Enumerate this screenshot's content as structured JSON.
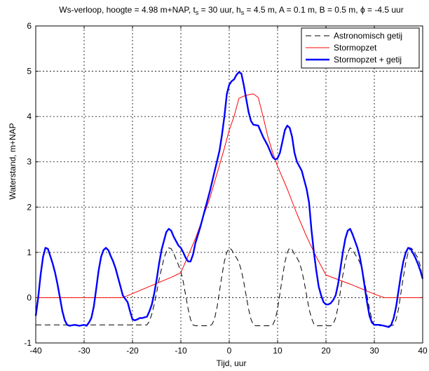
{
  "chart_data": {
    "type": "line",
    "title_parts": {
      "p1": "Ws-verloop, hoogte = 4.98 m+NAP, t",
      "s1": "s",
      "p2": " = 30 uur, h",
      "s2": "s",
      "p3": " = 4.5 m, A = 0.1 m, B = 0.5 m, ϕ = -4.5 uur"
    },
    "xlabel": "Tijd, uur",
    "ylabel": "Waterstand, m+NAP",
    "xlim": [
      -40,
      40
    ],
    "ylim": [
      -1,
      6
    ],
    "xticks": [
      "-40",
      "-30",
      "-20",
      "-10",
      "0",
      "10",
      "20",
      "30",
      "40"
    ],
    "yticks": [
      "-1",
      "0",
      "1",
      "2",
      "3",
      "4",
      "5",
      "6"
    ],
    "grid": true,
    "legend_position": "top-right",
    "series": [
      {
        "name": "Astronomisch getij",
        "color": "#000000",
        "style": "dashed",
        "points": [
          [
            -40,
            -0.6
          ],
          [
            -39.5,
            -0.6
          ],
          [
            -39,
            -0.6
          ],
          [
            -38.5,
            -0.6
          ],
          [
            -38,
            -0.6
          ],
          [
            -37.5,
            -0.6
          ],
          [
            -37,
            -0.6
          ],
          [
            -36.5,
            -0.6
          ],
          [
            -36,
            -0.6
          ],
          [
            -35.5,
            -0.6
          ],
          [
            -35,
            -0.6
          ],
          [
            -34.5,
            -0.6
          ],
          [
            -34,
            -0.6
          ],
          [
            -33.5,
            -0.6
          ],
          [
            -33,
            -0.6
          ],
          [
            -32.5,
            -0.6
          ],
          [
            -32,
            -0.6
          ],
          [
            -31.5,
            -0.6
          ],
          [
            -31,
            -0.6
          ],
          [
            -30.5,
            -0.6
          ],
          [
            -30,
            -0.6
          ],
          [
            -29.5,
            -0.6
          ],
          [
            -29,
            -0.6
          ],
          [
            -28.5,
            -0.6
          ],
          [
            -28,
            -0.6
          ],
          [
            -27.5,
            -0.6
          ],
          [
            -27,
            -0.6
          ],
          [
            -26.5,
            -0.6
          ],
          [
            -26,
            -0.6
          ],
          [
            -25.5,
            -0.6
          ],
          [
            -25,
            -0.6
          ],
          [
            -24.5,
            -0.6
          ],
          [
            -24,
            -0.6
          ],
          [
            -23.5,
            -0.6
          ],
          [
            -23,
            -0.6
          ],
          [
            -22.5,
            -0.6
          ],
          [
            -22,
            -0.6
          ],
          [
            -21.5,
            -0.6
          ],
          [
            -21,
            -0.6
          ],
          [
            -20.5,
            -0.6
          ],
          [
            -20,
            -0.6
          ],
          [
            -19.5,
            -0.6
          ],
          [
            -19,
            -0.6
          ],
          [
            -18.5,
            -0.6
          ],
          [
            -18,
            -0.6
          ],
          [
            -17.5,
            -0.6
          ],
          [
            -17,
            -0.6
          ],
          [
            -16.5,
            -0.52
          ],
          [
            -16,
            -0.36
          ],
          [
            -15.5,
            -0.14
          ],
          [
            -15,
            0.12
          ],
          [
            -14.5,
            0.4
          ],
          [
            -14,
            0.64
          ],
          [
            -13.5,
            0.86
          ],
          [
            -13,
            1.02
          ],
          [
            -12.5,
            1.1
          ],
          [
            -12,
            1.08
          ],
          [
            -11.5,
            0.98
          ],
          [
            -11,
            0.85
          ],
          [
            -10.5,
            0.72
          ],
          [
            -10,
            0.58
          ],
          [
            -9.5,
            0.35
          ],
          [
            -9,
            0.05
          ],
          [
            -8.5,
            -0.25
          ],
          [
            -8,
            -0.48
          ],
          [
            -7.5,
            -0.6
          ],
          [
            -7,
            -0.62
          ],
          [
            -6,
            -0.62
          ],
          [
            -5,
            -0.62
          ],
          [
            -4,
            -0.62
          ],
          [
            -3.5,
            -0.58
          ],
          [
            -3,
            -0.45
          ],
          [
            -2.5,
            -0.2
          ],
          [
            -2,
            0.15
          ],
          [
            -1.5,
            0.5
          ],
          [
            -1,
            0.8
          ],
          [
            -0.5,
            1.0
          ],
          [
            0,
            1.1
          ],
          [
            0.5,
            1.06
          ],
          [
            1,
            0.96
          ],
          [
            1.5,
            0.88
          ],
          [
            2,
            0.78
          ],
          [
            2.5,
            0.6
          ],
          [
            3,
            0.35
          ],
          [
            3.5,
            0.05
          ],
          [
            4,
            -0.25
          ],
          [
            4.5,
            -0.48
          ],
          [
            5,
            -0.6
          ],
          [
            5.5,
            -0.62
          ],
          [
            6.5,
            -0.62
          ],
          [
            7.5,
            -0.62
          ],
          [
            8.5,
            -0.62
          ],
          [
            9,
            -0.6
          ],
          [
            9.5,
            -0.48
          ],
          [
            10,
            -0.25
          ],
          [
            10.5,
            0.1
          ],
          [
            11,
            0.45
          ],
          [
            11.5,
            0.78
          ],
          [
            12,
            1.0
          ],
          [
            12.5,
            1.1
          ],
          [
            13,
            1.06
          ],
          [
            13.5,
            0.96
          ],
          [
            14,
            0.88
          ],
          [
            14.5,
            0.78
          ],
          [
            15,
            0.6
          ],
          [
            15.5,
            0.35
          ],
          [
            16,
            0.05
          ],
          [
            16.5,
            -0.25
          ],
          [
            17,
            -0.45
          ],
          [
            17.5,
            -0.58
          ],
          [
            18,
            -0.62
          ],
          [
            19,
            -0.62
          ],
          [
            20,
            -0.62
          ],
          [
            21,
            -0.62
          ],
          [
            21.5,
            -0.58
          ],
          [
            22,
            -0.45
          ],
          [
            22.5,
            -0.2
          ],
          [
            23,
            0.15
          ],
          [
            23.5,
            0.5
          ],
          [
            24,
            0.8
          ],
          [
            24.5,
            1.0
          ],
          [
            25,
            1.1
          ],
          [
            25.5,
            1.06
          ],
          [
            26,
            0.96
          ],
          [
            26.5,
            0.88
          ],
          [
            27,
            0.78
          ],
          [
            27.5,
            0.6
          ],
          [
            28,
            0.35
          ],
          [
            28.5,
            0.05
          ],
          [
            29,
            -0.25
          ],
          [
            29.5,
            -0.48
          ],
          [
            30,
            -0.6
          ],
          [
            30.5,
            -0.62
          ],
          [
            31.5,
            -0.62
          ],
          [
            32.5,
            -0.62
          ],
          [
            33.5,
            -0.62
          ],
          [
            34,
            -0.6
          ],
          [
            34.5,
            -0.48
          ],
          [
            35,
            -0.25
          ],
          [
            35.5,
            0.1
          ],
          [
            36,
            0.45
          ],
          [
            36.5,
            0.78
          ],
          [
            37,
            1.0
          ],
          [
            37.5,
            1.1
          ],
          [
            38,
            1.06
          ],
          [
            38.5,
            0.96
          ],
          [
            39,
            0.88
          ],
          [
            39.5,
            0.7
          ],
          [
            40,
            0.4
          ]
        ]
      },
      {
        "name": "Stormopzet",
        "color": "#ff0000",
        "style": "solid",
        "points": [
          [
            -40,
            0
          ],
          [
            -22,
            0
          ],
          [
            -12,
            0.45
          ],
          [
            -10,
            0.55
          ],
          [
            -7,
            1.3
          ],
          [
            -4,
            2.2
          ],
          [
            -1,
            3.3
          ],
          [
            0,
            3.7
          ],
          [
            1,
            4.0
          ],
          [
            2,
            4.4
          ],
          [
            3,
            4.45
          ],
          [
            4,
            4.48
          ],
          [
            5,
            4.5
          ],
          [
            6,
            4.42
          ],
          [
            7,
            4.0
          ],
          [
            8,
            3.55
          ],
          [
            9,
            3.2
          ],
          [
            10,
            2.9
          ],
          [
            12,
            2.4
          ],
          [
            14,
            1.85
          ],
          [
            16,
            1.35
          ],
          [
            18,
            0.9
          ],
          [
            20,
            0.5
          ],
          [
            25,
            0.3
          ],
          [
            30,
            0.08
          ],
          [
            32,
            0
          ],
          [
            40,
            0
          ]
        ]
      },
      {
        "name": "Stormopzet + getij",
        "color": "#0000ff",
        "style": "solid-thick",
        "points": [
          [
            -40,
            -0.4
          ],
          [
            -39.5,
            0
          ],
          [
            -39,
            0.5
          ],
          [
            -38.5,
            0.9
          ],
          [
            -38,
            1.1
          ],
          [
            -37.5,
            1.08
          ],
          [
            -37,
            0.92
          ],
          [
            -36.5,
            0.75
          ],
          [
            -36,
            0.55
          ],
          [
            -35.5,
            0.3
          ],
          [
            -35,
            0
          ],
          [
            -34.5,
            -0.3
          ],
          [
            -34,
            -0.5
          ],
          [
            -33.5,
            -0.6
          ],
          [
            -33,
            -0.62
          ],
          [
            -32,
            -0.6
          ],
          [
            -31,
            -0.62
          ],
          [
            -30,
            -0.6
          ],
          [
            -29.5,
            -0.62
          ],
          [
            -29,
            -0.55
          ],
          [
            -28.5,
            -0.45
          ],
          [
            -28,
            -0.2
          ],
          [
            -27.5,
            0.2
          ],
          [
            -27,
            0.6
          ],
          [
            -26.5,
            0.9
          ],
          [
            -26,
            1.05
          ],
          [
            -25.5,
            1.1
          ],
          [
            -25,
            1.05
          ],
          [
            -24.5,
            0.92
          ],
          [
            -24,
            0.8
          ],
          [
            -23.5,
            0.65
          ],
          [
            -23,
            0.45
          ],
          [
            -22.5,
            0.25
          ],
          [
            -22,
            0.05
          ],
          [
            -21,
            -0.1
          ],
          [
            -20.5,
            -0.3
          ],
          [
            -20,
            -0.48
          ],
          [
            -19.5,
            -0.5
          ],
          [
            -19,
            -0.48
          ],
          [
            -18.5,
            -0.45
          ],
          [
            -18,
            -0.45
          ],
          [
            -17,
            -0.42
          ],
          [
            -16.5,
            -0.3
          ],
          [
            -16,
            -0.15
          ],
          [
            -15.5,
            0.1
          ],
          [
            -15,
            0.4
          ],
          [
            -14.5,
            0.75
          ],
          [
            -14,
            1.05
          ],
          [
            -13.5,
            1.25
          ],
          [
            -13,
            1.45
          ],
          [
            -12.5,
            1.52
          ],
          [
            -12,
            1.48
          ],
          [
            -11.5,
            1.35
          ],
          [
            -11,
            1.25
          ],
          [
            -10.5,
            1.15
          ],
          [
            -10,
            1.1
          ],
          [
            -9.5,
            1.0
          ],
          [
            -9,
            0.88
          ],
          [
            -8.5,
            0.8
          ],
          [
            -8,
            0.8
          ],
          [
            -7.5,
            0.95
          ],
          [
            -7,
            1.2
          ],
          [
            -6,
            1.55
          ],
          [
            -5,
            1.95
          ],
          [
            -4,
            2.35
          ],
          [
            -3,
            2.8
          ],
          [
            -2,
            3.25
          ],
          [
            -1.5,
            3.6
          ],
          [
            -1,
            4.0
          ],
          [
            -0.5,
            4.5
          ],
          [
            0,
            4.7
          ],
          [
            0.5,
            4.78
          ],
          [
            1,
            4.82
          ],
          [
            1.5,
            4.92
          ],
          [
            2,
            4.98
          ],
          [
            2.5,
            4.95
          ],
          [
            3,
            4.7
          ],
          [
            3.5,
            4.4
          ],
          [
            4,
            4.1
          ],
          [
            4.5,
            3.9
          ],
          [
            5,
            3.82
          ],
          [
            6,
            3.8
          ],
          [
            7,
            3.55
          ],
          [
            8,
            3.35
          ],
          [
            9,
            3.1
          ],
          [
            9.5,
            3.05
          ],
          [
            10,
            3.08
          ],
          [
            10.5,
            3.2
          ],
          [
            11,
            3.45
          ],
          [
            11.5,
            3.7
          ],
          [
            12,
            3.8
          ],
          [
            12.5,
            3.75
          ],
          [
            13,
            3.55
          ],
          [
            13.5,
            3.2
          ],
          [
            14,
            3.0
          ],
          [
            15,
            2.8
          ],
          [
            15.5,
            2.6
          ],
          [
            16,
            2.4
          ],
          [
            16.5,
            2.1
          ],
          [
            17,
            1.5
          ],
          [
            17.5,
            1.0
          ],
          [
            18,
            0.6
          ],
          [
            18.5,
            0.25
          ],
          [
            19,
            0.05
          ],
          [
            19.5,
            -0.1
          ],
          [
            20,
            -0.15
          ],
          [
            20.5,
            -0.15
          ],
          [
            21,
            -0.12
          ],
          [
            21.5,
            -0.05
          ],
          [
            22,
            0.05
          ],
          [
            22.5,
            0.3
          ],
          [
            23,
            0.65
          ],
          [
            23.5,
            1.0
          ],
          [
            24,
            1.3
          ],
          [
            24.5,
            1.48
          ],
          [
            25,
            1.52
          ],
          [
            25.5,
            1.4
          ],
          [
            26,
            1.25
          ],
          [
            26.5,
            1.1
          ],
          [
            27,
            0.9
          ],
          [
            27.5,
            0.6
          ],
          [
            28,
            0.25
          ],
          [
            28.5,
            -0.1
          ],
          [
            29,
            -0.4
          ],
          [
            29.5,
            -0.55
          ],
          [
            30,
            -0.6
          ],
          [
            31,
            -0.6
          ],
          [
            32,
            -0.62
          ],
          [
            33,
            -0.65
          ],
          [
            33.5,
            -0.6
          ],
          [
            34,
            -0.45
          ],
          [
            34.5,
            -0.2
          ],
          [
            35,
            0.15
          ],
          [
            35.5,
            0.5
          ],
          [
            36,
            0.8
          ],
          [
            36.5,
            1.0
          ],
          [
            37,
            1.1
          ],
          [
            37.5,
            1.08
          ],
          [
            38,
            0.98
          ],
          [
            38.5,
            0.88
          ],
          [
            39,
            0.75
          ],
          [
            39.5,
            0.6
          ],
          [
            40,
            0.42
          ]
        ]
      }
    ]
  }
}
